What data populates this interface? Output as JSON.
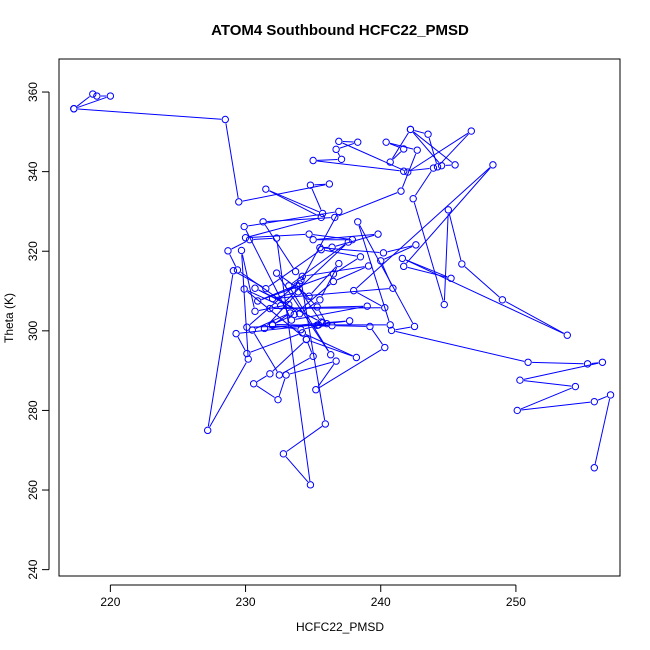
{
  "chart_data": {
    "type": "scatter",
    "title": "ATOM4 Southbound HCFC22_PMSD",
    "xlabel": "HCFC22_PMSD",
    "ylabel": "Theta (K)",
    "xlim": [
      216.2,
      257.7
    ],
    "ylim": [
      238.4,
      368.3
    ],
    "x_ticks": [
      220,
      230,
      240,
      250
    ],
    "y_ticks": [
      240,
      260,
      280,
      300,
      320,
      340,
      360
    ],
    "grid": false,
    "color": "#0000ff",
    "series": [
      {
        "x": [
          217.3,
          218.7,
          219.0,
          220.0,
          217.3,
          228.5,
          229.5,
          236.2,
          234.8,
          235.7,
          231.5,
          235.6,
          230.0,
          234.7,
          237.9,
          235.0,
          239.8,
          236.4,
          235.5,
          240.2,
          242.6,
          240.0,
          240.9,
          232.0,
          233.9,
          231.4,
          235.7,
          237.7,
          229.3,
          230.1,
          234.2,
          238.2,
          234.5,
          231.8,
          230.6,
          232.4,
          233.0,
          236.7,
          235.2,
          240.3,
          239.2,
          236.4,
          232.0,
          233.6,
          236.5,
          239.1,
          234.2,
          233.7,
          231.3,
          236.6,
          241.5,
          242.7,
          240.4,
          241.7,
          240.7,
          242.2,
          244.5,
          245.5,
          242.2,
          243.5,
          244.2,
          246.7,
          242.0,
          236.9,
          238.3,
          236.7,
          237.1,
          235.0,
          241.7,
          243.9,
          242.4,
          244.7,
          245.0,
          246.0,
          249.0,
          253.8,
          241.6,
          245.2,
          241.7,
          248.3,
          238.0,
          240.3,
          231.8,
          239.0,
          233.4,
          229.9,
          236.9,
          234.0,
          230.9,
          236.5,
          238.5,
          235.6,
          231.5,
          229.1,
          227.2,
          230.2,
          229.7,
          230.7,
          233.2,
          230.7,
          235.6,
          233.8,
          235.3,
          236.0,
          234.1,
          232.0,
          233.3,
          230.5,
          232.5,
          235.0,
          234.5,
          229.9,
          232.6,
          237.6,
          233.2,
          236.3,
          232.3,
          234.7,
          236.9,
          235.5,
          234.0,
          229.4,
          228.7,
          230.3,
          232.3,
          234.8,
          232.8,
          235.9,
          234.1,
          230.1,
          235.3,
          235.4,
          240.7,
          238.3,
          242.5,
          240.8,
          250.9,
          255.3,
          256.4,
          250.3,
          254.4,
          250.1,
          255.8,
          257.0,
          255.8
        ],
        "y": [
          355.8,
          359.5,
          359.0,
          359.0,
          355.8,
          353.1,
          332.4,
          336.9,
          336.6,
          329.5,
          335.6,
          328.5,
          323.4,
          324.3,
          322.9,
          322.9,
          324.3,
          321.0,
          320.9,
          319.6,
          321.6,
          317.6,
          310.7,
          308.1,
          309.8,
          300.6,
          302.0,
          302.5,
          299.3,
          294.3,
          299.5,
          293.3,
          297.8,
          289.2,
          286.7,
          282.7,
          288.9,
          292.4,
          285.2,
          295.8,
          301.1,
          301.3,
          301.6,
          304.1,
          312.4,
          316.3,
          313.7,
          314.9,
          327.4,
          328.5,
          335.1,
          345.4,
          347.4,
          345.7,
          342.4,
          350.6,
          341.5,
          341.7,
          350.6,
          349.4,
          341.2,
          350.2,
          339.9,
          347.6,
          347.4,
          345.6,
          343.1,
          342.8,
          340.1,
          340.9,
          333.2,
          306.6,
          330.4,
          316.8,
          307.8,
          298.9,
          318.2,
          313.2,
          316.2,
          341.7,
          310.1,
          305.8,
          305.6,
          306.2,
          302.7,
          326.2,
          330.0,
          311.8,
          307.5,
          314.3,
          318.6,
          320.4,
          310.6,
          315.1,
          275.0,
          292.9,
          320.2,
          304.9,
          306.6,
          310.7,
          302.2,
          311.3,
          306.0,
          301.8,
          300.3,
          301.4,
          304.5,
          300.2,
          288.9,
          293.6,
          297.9,
          310.5,
          306.3,
          322.3,
          311.3,
          294.0,
          314.5,
          308.7,
          316.9,
          307.8,
          304.3,
          315.3,
          320.1,
          322.9,
          323.3,
          261.3,
          269.1,
          276.6,
          312.7,
          300.9,
          301.4,
          301.5,
          301.5,
          327.4,
          301.1,
          300.1,
          292.1,
          291.7,
          292.1,
          287.6,
          286.0,
          280.0,
          282.2,
          283.9,
          265.6
        ]
      }
    ]
  }
}
